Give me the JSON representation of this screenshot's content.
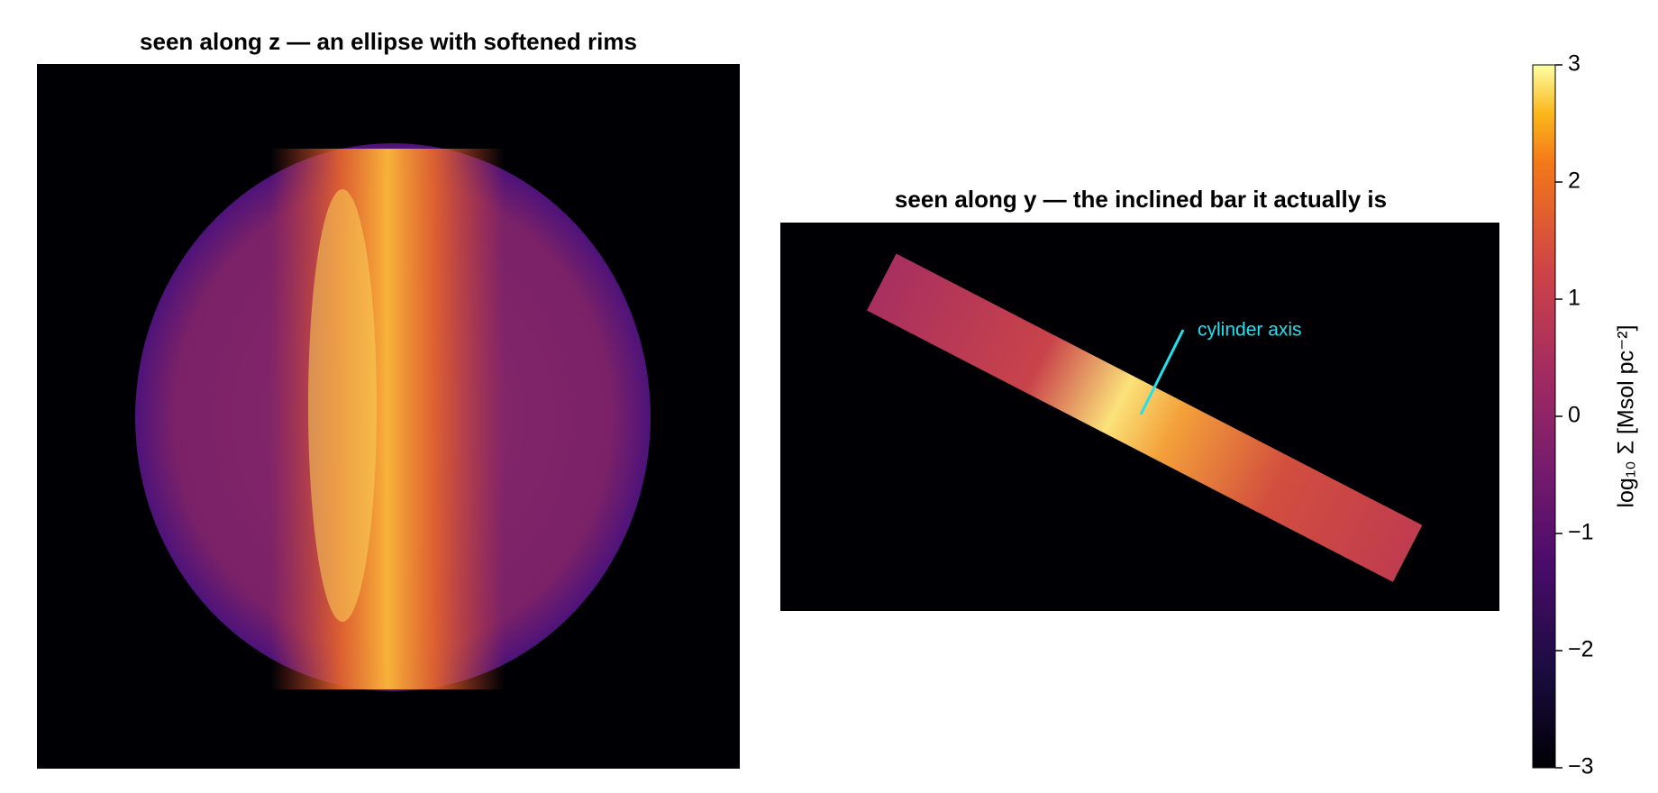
{
  "chart_data": [
    {
      "type": "image",
      "title": "seen along z — an ellipse with softened rims"
    },
    {
      "type": "image",
      "title": "seen along y — the inclined bar it actually is",
      "annotation": "cylinder axis"
    }
  ],
  "colorbar": {
    "label": "log₁₀ Σ  [Msol pc⁻²]",
    "colormap": "inferno",
    "clim": [
      -3,
      3
    ],
    "ticks": [
      {
        "value": -3,
        "label": "−3"
      },
      {
        "value": -2,
        "label": "−2"
      },
      {
        "value": -1,
        "label": "−1"
      },
      0,
      1,
      2,
      3
    ]
  }
}
